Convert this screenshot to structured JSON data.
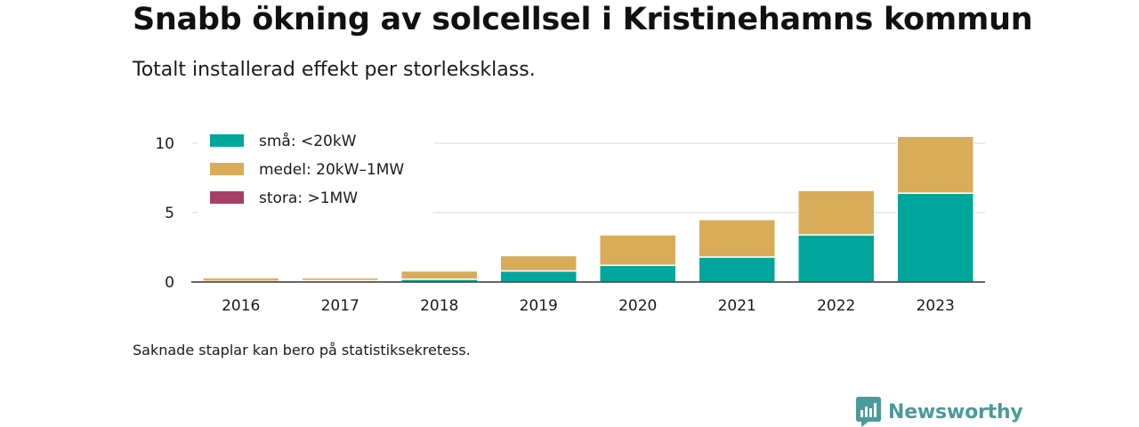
{
  "header": {
    "title": "Snabb ökning av solcellsel i Kristinehamns kommun",
    "subtitle": "Totalt installerad effekt per storleksklass."
  },
  "footer": {
    "note": "Saknade staplar kan bero på statistiksekretess.",
    "brand": "Newsworthy"
  },
  "colors": {
    "sma": "#00a69c",
    "medel": "#d9ac5a",
    "stora": "#a63f66",
    "brand": "#4a9b9b"
  },
  "chart_data": {
    "type": "bar",
    "stacked": true,
    "categories": [
      "2016",
      "2017",
      "2018",
      "2019",
      "2020",
      "2021",
      "2022",
      "2023"
    ],
    "series": [
      {
        "name": "små: <20kW",
        "color": "#00a69c",
        "values": [
          0.05,
          0.1,
          0.2,
          0.8,
          1.2,
          1.8,
          3.4,
          6.4
        ]
      },
      {
        "name": "medel: 20kW–1MW",
        "color": "#d9ac5a",
        "values": [
          0.25,
          0.2,
          0.6,
          1.1,
          2.2,
          2.7,
          3.2,
          4.1
        ]
      },
      {
        "name": "stora: >1MW",
        "color": "#a63f66",
        "values": [
          0,
          0,
          0,
          0,
          0,
          0,
          0,
          0
        ]
      }
    ],
    "y_ticks": [
      "0",
      "5",
      "10"
    ],
    "ylim": [
      0,
      10.5
    ],
    "xlabel": "",
    "ylabel": "",
    "grid": true,
    "legend_position": "top-left"
  }
}
